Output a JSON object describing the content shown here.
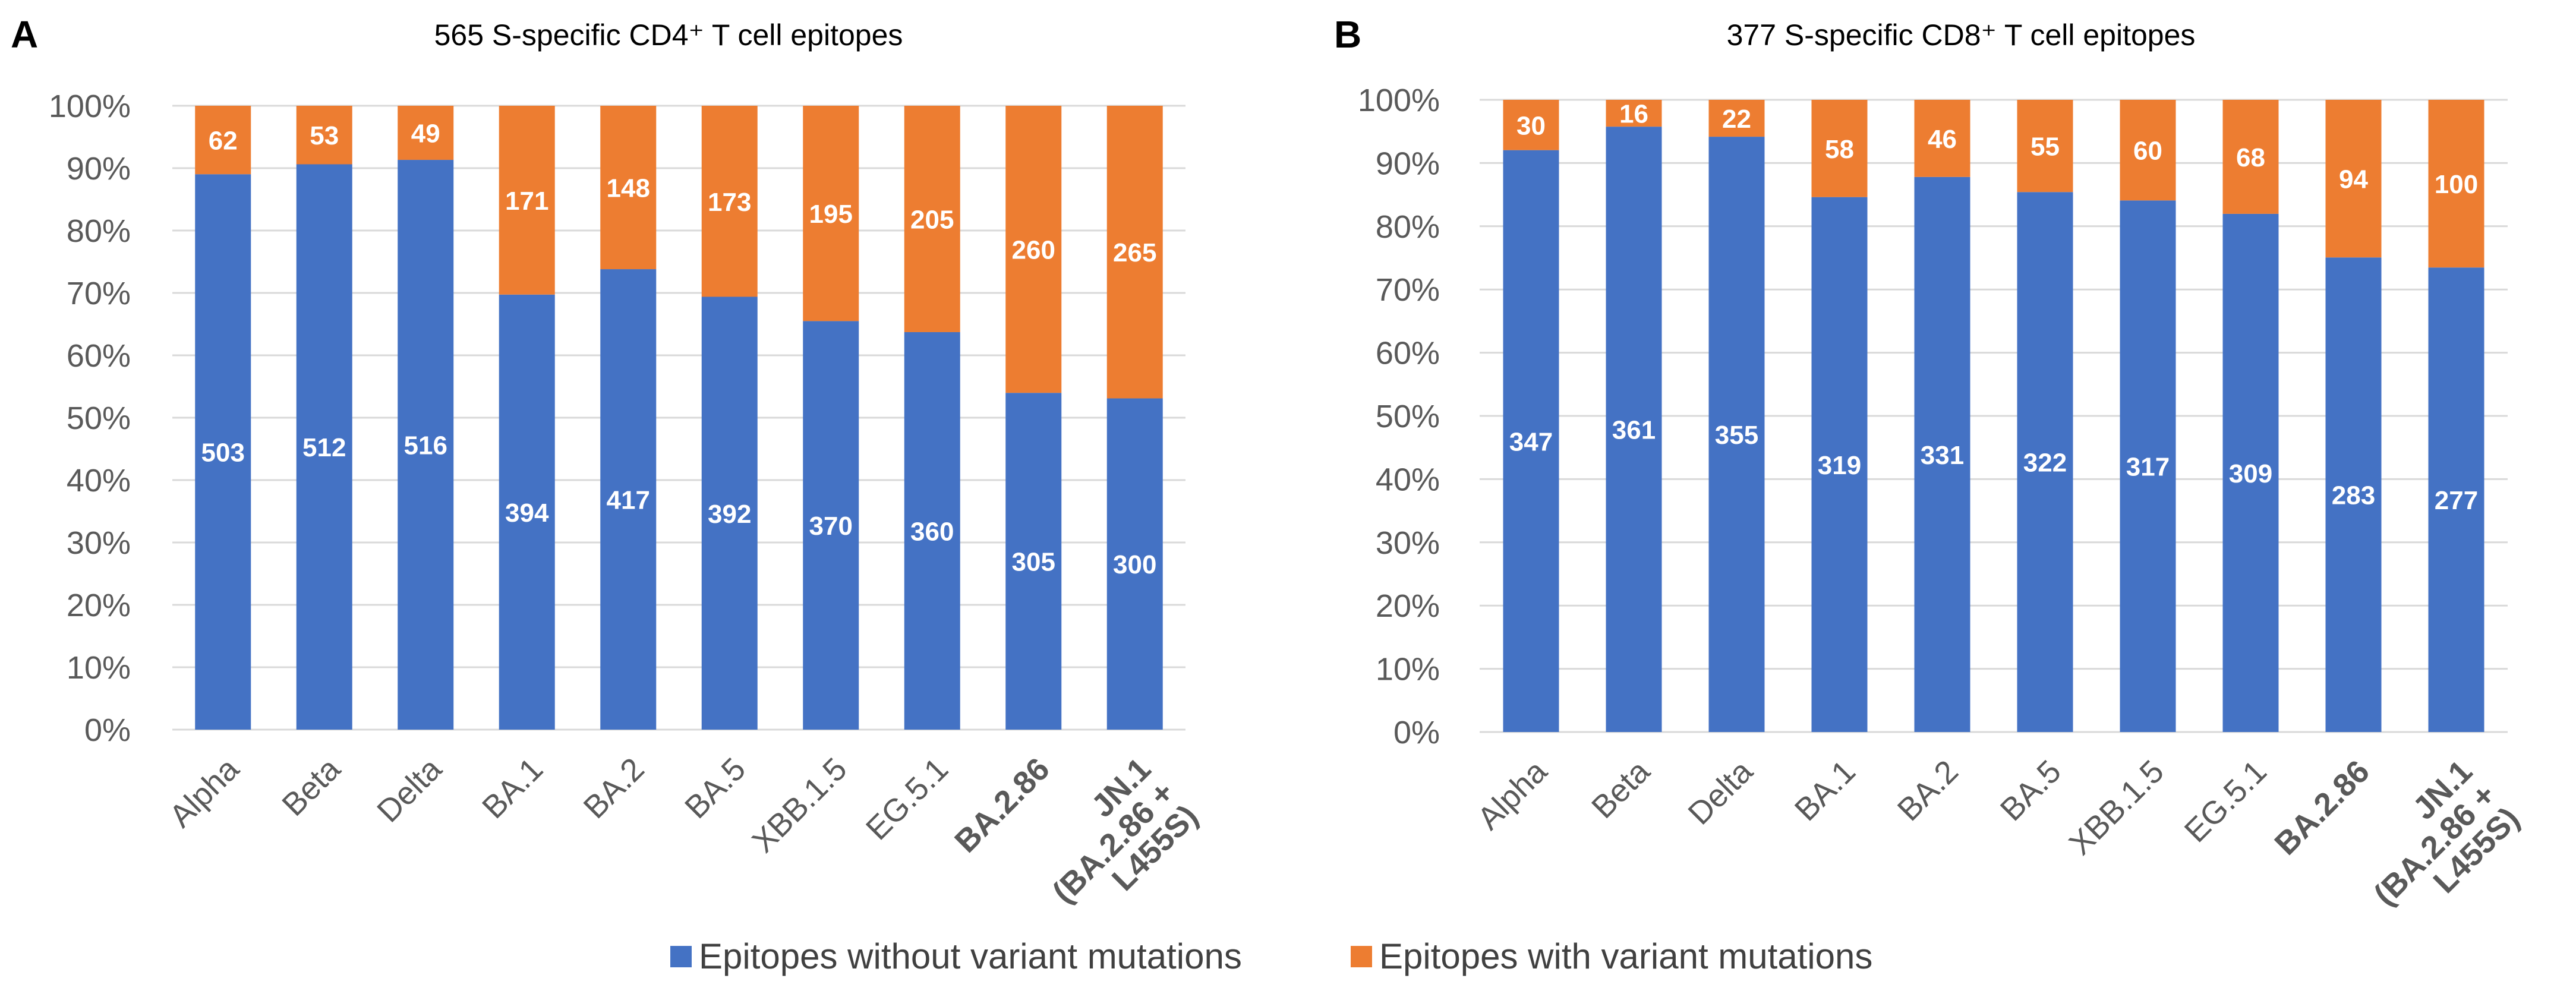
{
  "chart_data": [
    {
      "type": "bar",
      "stacked": "percent",
      "panel": "A",
      "title": "565 S-specific CD4⁺ T cell epitopes",
      "categories": [
        "Alpha",
        "Beta",
        "Delta",
        "BA.1",
        "BA.2",
        "BA.5",
        "XBB.1.5",
        "EG.5.1",
        "BA.2.86",
        "JN.1 (BA.2.86 + L455S)"
      ],
      "category_lines": [
        [
          "Alpha"
        ],
        [
          "Beta"
        ],
        [
          "Delta"
        ],
        [
          "BA.1"
        ],
        [
          "BA.2"
        ],
        [
          "BA.5"
        ],
        [
          "XBB.1.5"
        ],
        [
          "EG.5.1"
        ],
        [
          "BA.2.86"
        ],
        [
          "JN.1",
          "(BA.2.86 +",
          "L455S)"
        ]
      ],
      "bold_categories": [
        "BA.2.86",
        "JN.1 (BA.2.86 + L455S)"
      ],
      "series": [
        {
          "name": "Epitopes without variant mutations",
          "color": "#4472C4",
          "values": [
            503,
            512,
            516,
            394,
            417,
            392,
            370,
            360,
            305,
            300
          ]
        },
        {
          "name": "Epitopes with variant mutations",
          "color": "#ED7D31",
          "values": [
            62,
            53,
            49,
            171,
            148,
            173,
            195,
            205,
            260,
            265
          ]
        }
      ],
      "yticks": [
        "0%",
        "10%",
        "20%",
        "30%",
        "40%",
        "50%",
        "60%",
        "70%",
        "80%",
        "90%",
        "100%"
      ],
      "ylim": [
        0,
        100
      ],
      "ylabel": "",
      "xlabel": "",
      "grid": true
    },
    {
      "type": "bar",
      "stacked": "percent",
      "panel": "B",
      "title": "377 S-specific CD8⁺ T cell epitopes",
      "categories": [
        "Alpha",
        "Beta",
        "Delta",
        "BA.1",
        "BA.2",
        "BA.5",
        "XBB.1.5",
        "EG.5.1",
        "BA.2.86",
        "JN.1 (BA.2.86 + L455S)"
      ],
      "category_lines": [
        [
          "Alpha"
        ],
        [
          "Beta"
        ],
        [
          "Delta"
        ],
        [
          "BA.1"
        ],
        [
          "BA.2"
        ],
        [
          "BA.5"
        ],
        [
          "XBB.1.5"
        ],
        [
          "EG.5.1"
        ],
        [
          "BA.2.86"
        ],
        [
          "JN.1",
          "(BA.2.86 +",
          "L455S)"
        ]
      ],
      "bold_categories": [
        "BA.2.86",
        "JN.1 (BA.2.86 + L455S)"
      ],
      "series": [
        {
          "name": "Epitopes without variant mutations",
          "color": "#4472C4",
          "values": [
            347,
            361,
            355,
            319,
            331,
            322,
            317,
            309,
            283,
            277
          ]
        },
        {
          "name": "Epitopes with variant mutations",
          "color": "#ED7D31",
          "values": [
            30,
            16,
            22,
            58,
            46,
            55,
            60,
            68,
            94,
            100
          ]
        }
      ],
      "yticks": [
        "0%",
        "10%",
        "20%",
        "30%",
        "40%",
        "50%",
        "60%",
        "70%",
        "80%",
        "90%",
        "100%"
      ],
      "ylim": [
        0,
        100
      ],
      "ylabel": "",
      "xlabel": "",
      "grid": true
    }
  ],
  "legend": {
    "position": "bottom-center",
    "items": [
      {
        "label": "Epitopes without variant mutations",
        "color": "#4472C4"
      },
      {
        "label": "Epitopes with variant mutations",
        "color": "#ED7D31"
      }
    ]
  }
}
